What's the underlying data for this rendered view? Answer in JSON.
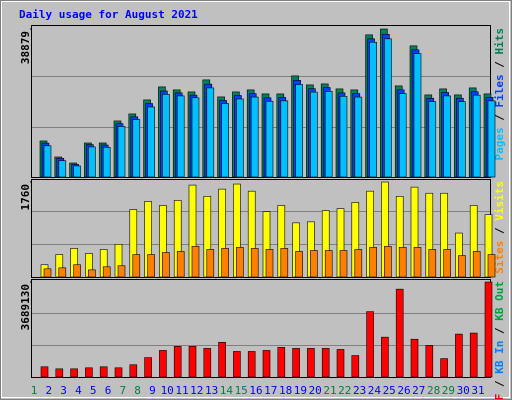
{
  "chart_data": [
    {
      "type": "bar",
      "title": "Daily usage for August 2021",
      "ylim": [
        0,
        38879
      ],
      "yticks": [
        38879
      ],
      "legend_separator": " / ",
      "series": [
        {
          "name": "Pages",
          "color": "#00c0ff",
          "values": [
            8200,
            4300,
            2900,
            7900,
            7800,
            13300,
            15100,
            18400,
            21700,
            21300,
            20800,
            23400,
            19300,
            20500,
            21000,
            19900,
            20000,
            24300,
            22300,
            22500,
            21200,
            21000,
            35400,
            36300,
            21900,
            32400,
            19800,
            21300,
            19800,
            21500,
            20000
          ]
        },
        {
          "name": "Files",
          "color": "#0040ff",
          "values": [
            8900,
            4900,
            3300,
            8500,
            8400,
            14000,
            15800,
            19300,
            22600,
            22100,
            21500,
            24400,
            20100,
            21400,
            21900,
            20800,
            20900,
            25400,
            23200,
            23500,
            22100,
            21900,
            36300,
            37500,
            22900,
            33400,
            20700,
            22200,
            20700,
            22400,
            20900
          ]
        },
        {
          "name": "Hits",
          "color": "#00805c",
          "values": [
            9468,
            5260,
            3682,
            8942,
            8942,
            14728,
            16569,
            20251,
            23670,
            22881,
            22355,
            25511,
            21040,
            22355,
            22881,
            21829,
            21829,
            26563,
            24196,
            24459,
            23144,
            22881,
            37346,
            38879,
            23933,
            34453,
            21566,
            23144,
            21566,
            23407,
            21829
          ]
        }
      ]
    },
    {
      "type": "bar",
      "ylim": [
        0,
        1760
      ],
      "yticks": [
        1760
      ],
      "legend_separator": " / ",
      "series": [
        {
          "name": "Sites",
          "color": "#ff8000",
          "values": [
            151,
            170,
            227,
            132,
            189,
            208,
            416,
            416,
            454,
            473,
            567,
            510,
            529,
            548,
            529,
            510,
            529,
            473,
            491,
            491,
            491,
            510,
            548,
            567,
            548,
            548,
            510,
            510,
            397,
            473,
            416
          ]
        },
        {
          "name": "Visits",
          "color": "#ffff00",
          "values": [
            227,
            416,
            530,
            435,
            511,
            606,
            1249,
            1400,
            1325,
            1419,
            1703,
            1495,
            1628,
            1722,
            1590,
            1211,
            1325,
            1003,
            1022,
            1230,
            1268,
            1382,
            1590,
            1760,
            1495,
            1665,
            1552,
            1552,
            814,
            1325,
            1154
          ]
        }
      ]
    },
    {
      "type": "bar",
      "ylim": [
        0,
        3689130
      ],
      "yticks": [
        3689130
      ],
      "legend_separator": " / ",
      "categories": [
        "1",
        "2",
        "3",
        "4",
        "5",
        "6",
        "7",
        "8",
        "9",
        "10",
        "11",
        "12",
        "13",
        "14",
        "15",
        "16",
        "17",
        "18",
        "19",
        "20",
        "21",
        "22",
        "23",
        "24",
        "25",
        "26",
        "27",
        "28",
        "29",
        "30",
        "31"
      ],
      "category_colors": [
        "#008040",
        "#0000ff",
        "#0000ff",
        "#0000ff",
        "#0000ff",
        "#0000ff",
        "#008040",
        "#008040",
        "#0000ff",
        "#0000ff",
        "#0000ff",
        "#0000ff",
        "#0000ff",
        "#008040",
        "#008040",
        "#0000ff",
        "#0000ff",
        "#0000ff",
        "#0000ff",
        "#0000ff",
        "#008040",
        "#008040",
        "#0000ff",
        "#0000ff",
        "#0000ff",
        "#0000ff",
        "#0000ff",
        "#008040",
        "#008040",
        "#0000ff",
        "#0000ff"
      ],
      "series": [
        {
          "name": "KB F",
          "color": "#ff0000",
          "values": [
            396681,
            317345,
            317345,
            357013,
            396681,
            357013,
            476017,
            753692,
            1031370,
            1190040,
            1190040,
            1110700,
            1348710,
            991700,
            991700,
            1031370,
            1150370,
            1110700,
            1110700,
            1110700,
            1071040,
            833028,
            2538750,
            1547060,
            3411450,
            1467720,
            1229710,
            714024,
            1666060,
            1705720,
            3689130
          ]
        },
        {
          "name": "KB In",
          "color": "#0080ff"
        },
        {
          "name": "KB Out",
          "color": "#00a040"
        }
      ]
    }
  ]
}
